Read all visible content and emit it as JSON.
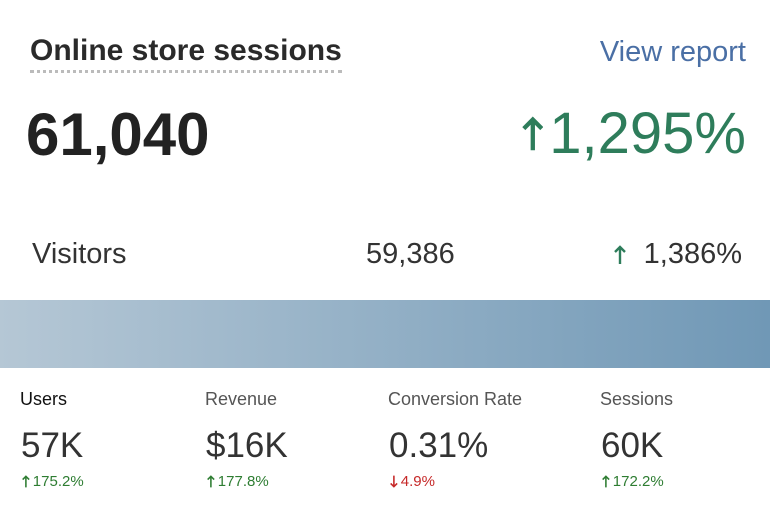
{
  "header": {
    "title": "Online store sessions",
    "link": "View report"
  },
  "total": {
    "value": "61,040",
    "change": "1,295%",
    "trend": "up"
  },
  "visitors": {
    "label": "Visitors",
    "value": "59,386",
    "change": "1,386%",
    "trend": "up"
  },
  "metrics": [
    {
      "label": "Users",
      "value": "57K",
      "change": "175.2%",
      "trend": "up"
    },
    {
      "label": "Revenue",
      "value": "$16K",
      "change": "177.8%",
      "trend": "up"
    },
    {
      "label": "Conversion Rate",
      "value": "0.31%",
      "change": "4.9%",
      "trend": "down"
    },
    {
      "label": "Sessions",
      "value": "60K",
      "change": "172.2%",
      "trend": "up"
    }
  ]
}
